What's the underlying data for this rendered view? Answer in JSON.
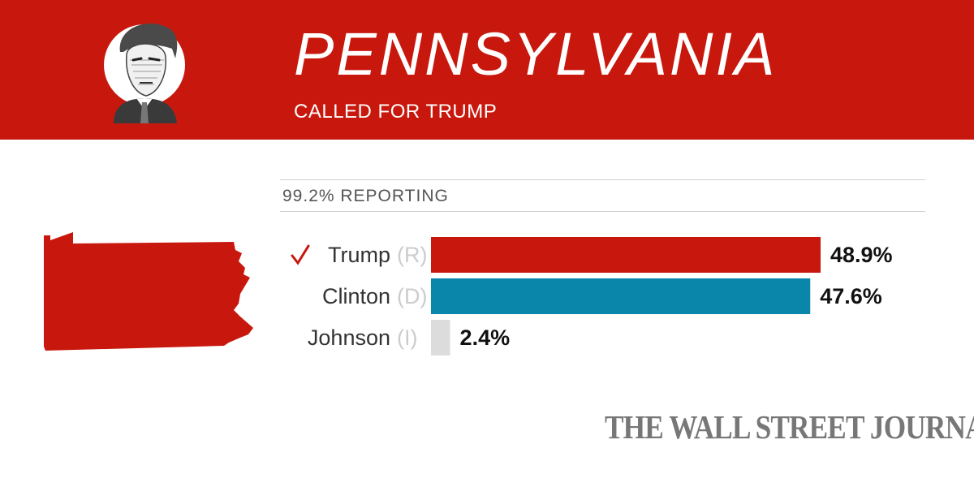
{
  "header": {
    "state": "PENNSYLVANIA",
    "call_status": "CALLED FOR TRUMP",
    "background_color": "#c8180e",
    "portrait_icon": "candidate-portrait"
  },
  "reporting": "99.2% REPORTING",
  "map_icon": "pennsylvania-state-map",
  "chart_data": {
    "type": "bar",
    "orientation": "horizontal",
    "title": "PENNSYLVANIA",
    "subtitle": "99.2% REPORTING",
    "categories": [
      "Trump",
      "Clinton",
      "Johnson"
    ],
    "parties": [
      "(R)",
      "(D)",
      "(I)"
    ],
    "values": [
      48.9,
      47.6,
      2.4
    ],
    "value_labels": [
      "48.9%",
      "47.6%",
      "2.4%"
    ],
    "colors": [
      "#c8180e",
      "#0a86ab",
      "#dcdcdc"
    ],
    "winner": "Trump",
    "winner_mark": "✓",
    "xlim": [
      0,
      48.9
    ],
    "xlabel": "",
    "ylabel": "",
    "grid": false
  },
  "footer": {
    "publisher": "THE WALL STREET JOURNAL."
  }
}
